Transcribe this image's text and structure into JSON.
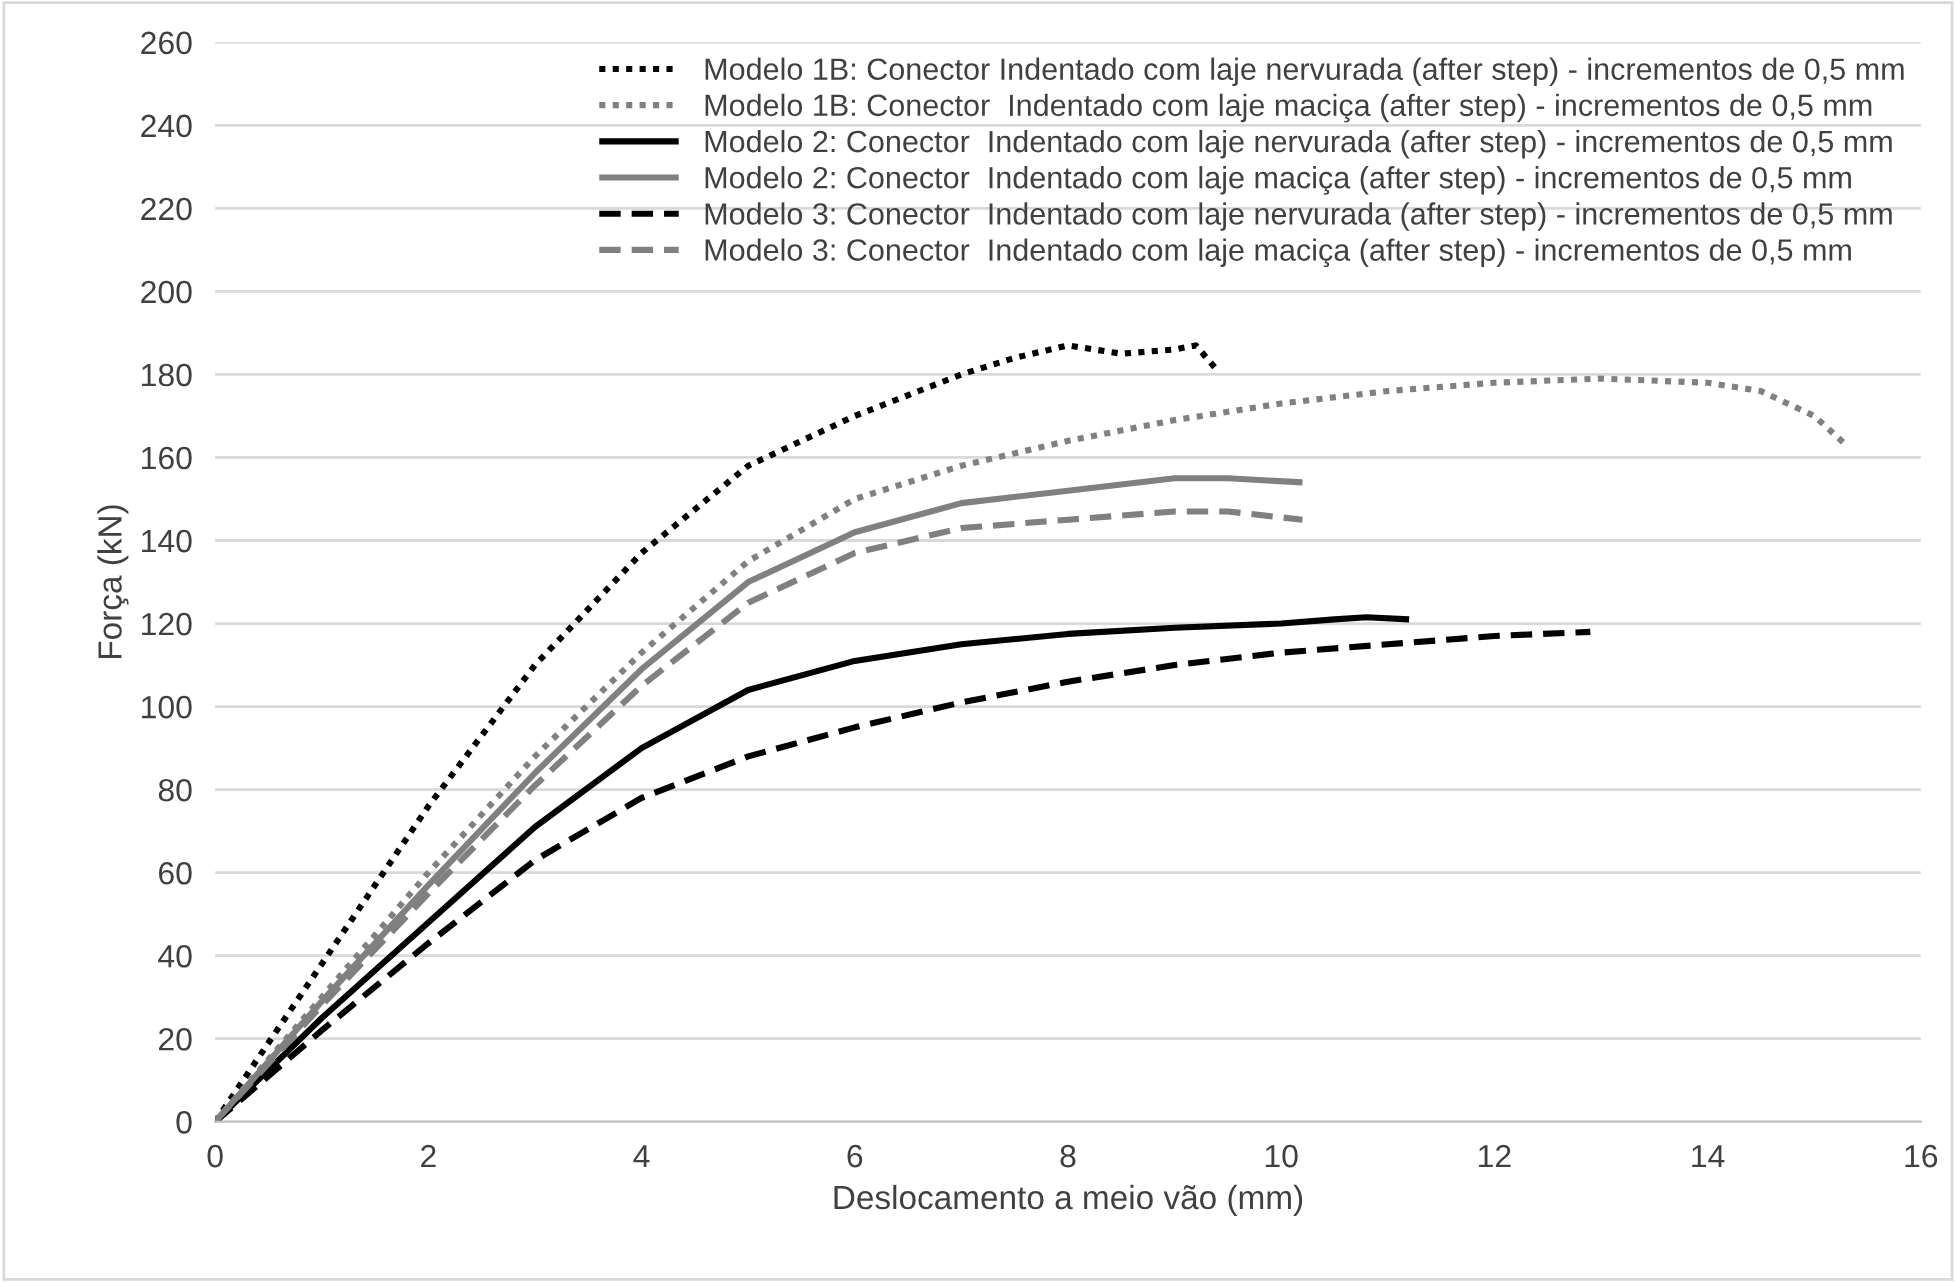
{
  "chart_data": {
    "type": "line",
    "xlabel": "Deslocamento a meio vão (mm)",
    "ylabel": "Força (kN)",
    "xlim": [
      0,
      16
    ],
    "xticks": [
      0,
      2,
      4,
      6,
      8,
      10,
      12,
      14,
      16
    ],
    "ylim": [
      0,
      260
    ],
    "yticks": [
      0,
      20,
      40,
      60,
      80,
      100,
      120,
      140,
      160,
      180,
      200,
      220,
      240,
      260
    ],
    "grid": "y",
    "legend": "top right",
    "marker": "none",
    "series": [
      {
        "name": "Modelo 1B: Conector Indentado com laje nervurada (after step) - incrementos de 0,5 mm",
        "color": "#000000",
        "line_style": "dotted",
        "x": [
          0,
          1,
          2,
          3,
          4,
          5,
          6,
          7,
          7.5,
          8,
          8.5,
          9,
          9.2,
          9.4
        ],
        "values": [
          0,
          38,
          76,
          110,
          137,
          158,
          170,
          180,
          184,
          187,
          185,
          186,
          187,
          181
        ]
      },
      {
        "name": "Modelo 1B: Conector  Indentado com laje maciça (after step) - incrementos de 0,5 mm",
        "color": "#808080",
        "line_style": "dotted",
        "x": [
          0,
          1,
          2,
          3,
          4,
          5,
          6,
          7,
          8,
          9,
          10,
          11,
          12,
          13,
          14,
          14.5,
          15,
          15.3
        ],
        "values": [
          0,
          30,
          60,
          88,
          113,
          135,
          150,
          158,
          164,
          169,
          173,
          176,
          178,
          179,
          178,
          176,
          170,
          163
        ]
      },
      {
        "name": "Modelo 2: Conector  Indentado com laje nervurada (after step) - incrementos de 0,5 mm",
        "color": "#000000",
        "line_style": "solid",
        "x": [
          0,
          1,
          2,
          3,
          4,
          5,
          6,
          7,
          8,
          9,
          10,
          10.5,
          10.8,
          11.2
        ],
        "values": [
          0,
          25,
          48,
          71,
          90,
          104,
          111,
          115,
          117.5,
          119,
          120,
          121,
          121.5,
          121
        ]
      },
      {
        "name": "Modelo 2: Conector  Indentado com laje maciça (after step) - incrementos de 0,5 mm",
        "color": "#808080",
        "line_style": "solid",
        "x": [
          0,
          1,
          2,
          3,
          4,
          5,
          6,
          7,
          8,
          9,
          9.5,
          10.2
        ],
        "values": [
          0,
          29,
          57,
          84,
          109,
          130,
          142,
          149,
          152,
          155,
          155,
          154
        ]
      },
      {
        "name": "Modelo 3: Conector  Indentado com laje nervurada (after step) - incrementos de 0,5 mm",
        "color": "#000000",
        "line_style": "dashed",
        "x": [
          0,
          1,
          2,
          3,
          4,
          5,
          6,
          7,
          8,
          9,
          10,
          11,
          12,
          12.9
        ],
        "values": [
          0,
          22,
          43,
          63,
          78,
          88,
          95,
          101,
          106,
          110,
          113,
          115,
          117,
          118
        ]
      },
      {
        "name": "Modelo 3: Conector  Indentado com laje maciça (after step) - incrementos de 0,5 mm",
        "color": "#808080",
        "line_style": "dashed",
        "x": [
          0,
          1,
          2,
          3,
          4,
          5,
          6,
          7,
          8,
          9,
          9.5,
          10.2
        ],
        "values": [
          0,
          28,
          55,
          81,
          105,
          125,
          137,
          143,
          145,
          147,
          147,
          145
        ]
      }
    ]
  }
}
